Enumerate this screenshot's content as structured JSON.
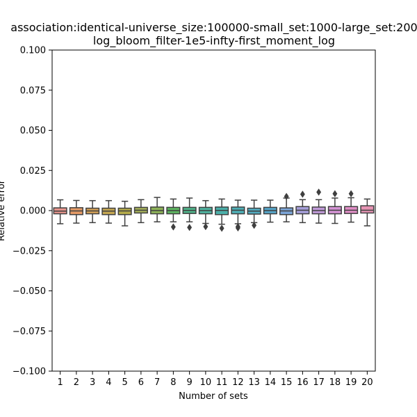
{
  "chart_data": {
    "type": "box",
    "title_line1": "association:identical-universe_size:100000-small_set:1000-large_set:200",
    "title_line2": "log_bloom_filter-1e5-infty-first_moment_log",
    "xlabel": "Number of sets",
    "ylabel": "Relative error",
    "ylim": [
      -0.1,
      0.1
    ],
    "yticks": [
      "−0.100",
      "−0.075",
      "−0.050",
      "−0.025",
      "0.000",
      "0.025",
      "0.050",
      "0.075",
      "0.100"
    ],
    "ytick_values": [
      -0.1,
      -0.075,
      -0.05,
      -0.025,
      0.0,
      0.025,
      0.05,
      0.075,
      0.1
    ],
    "categories": [
      "1",
      "2",
      "3",
      "4",
      "5",
      "6",
      "7",
      "8",
      "9",
      "10",
      "11",
      "12",
      "13",
      "14",
      "15",
      "16",
      "17",
      "18",
      "19",
      "20"
    ],
    "grid": false,
    "boxes": [
      {
        "q1": -0.002,
        "median": -0.0003,
        "q3": 0.0017,
        "whislo": -0.0082,
        "whishi": 0.0067,
        "fliers": [],
        "color": "#e6938b"
      },
      {
        "q1": -0.0025,
        "median": -0.0002,
        "q3": 0.0018,
        "whislo": -0.0078,
        "whishi": 0.0063,
        "fliers": [],
        "color": "#e39a66"
      },
      {
        "q1": -0.002,
        "median": -0.0002,
        "q3": 0.0015,
        "whislo": -0.0075,
        "whishi": 0.0062,
        "fliers": [],
        "color": "#d4a057"
      },
      {
        "q1": -0.0025,
        "median": -0.0003,
        "q3": 0.0015,
        "whislo": -0.0078,
        "whishi": 0.0062,
        "fliers": [],
        "color": "#c4a651"
      },
      {
        "q1": -0.0025,
        "median": -0.0002,
        "q3": 0.0015,
        "whislo": -0.0095,
        "whishi": 0.0058,
        "fliers": [],
        "color": "#b5ac4b"
      },
      {
        "q1": -0.0015,
        "median": 0.0002,
        "q3": 0.002,
        "whislo": -0.0075,
        "whishi": 0.0068,
        "fliers": [],
        "color": "#a5b05a"
      },
      {
        "q1": -0.002,
        "median": 0.0,
        "q3": 0.0022,
        "whislo": -0.007,
        "whishi": 0.0082,
        "fliers": [],
        "color": "#8db258"
      },
      {
        "q1": -0.002,
        "median": 0.0,
        "q3": 0.002,
        "whislo": -0.007,
        "whishi": 0.0072,
        "fliers": [
          -0.0102
        ],
        "color": "#5db560"
      },
      {
        "q1": -0.0018,
        "median": 0.0001,
        "q3": 0.002,
        "whislo": -0.007,
        "whishi": 0.0078,
        "fliers": [
          -0.0105
        ],
        "color": "#4fb48a"
      },
      {
        "q1": -0.002,
        "median": 0.0,
        "q3": 0.002,
        "whislo": -0.008,
        "whishi": 0.0062,
        "fliers": [
          -0.01
        ],
        "color": "#4fb29f"
      },
      {
        "q1": -0.0025,
        "median": 0.0001,
        "q3": 0.0022,
        "whislo": -0.0085,
        "whishi": 0.0072,
        "fliers": [
          -0.011
        ],
        "color": "#4bb0aa"
      },
      {
        "q1": -0.002,
        "median": 0.0002,
        "q3": 0.0022,
        "whislo": -0.0082,
        "whishi": 0.0065,
        "fliers": [
          -0.01,
          -0.0108
        ],
        "color": "#4eaeb5"
      },
      {
        "q1": -0.0022,
        "median": -0.0003,
        "q3": 0.0015,
        "whislo": -0.0075,
        "whishi": 0.0065,
        "fliers": [
          -0.0092
        ],
        "color": "#52abbf"
      },
      {
        "q1": -0.002,
        "median": 0.0,
        "q3": 0.002,
        "whislo": -0.0072,
        "whishi": 0.0065,
        "fliers": [],
        "color": "#56a5c9"
      },
      {
        "q1": -0.0025,
        "median": -0.0002,
        "q3": 0.0017,
        "whislo": -0.007,
        "whishi": 0.0078,
        "fliers": [
          0.0088
        ],
        "color": "#7ba4d6"
      },
      {
        "q1": -0.002,
        "median": 0.0002,
        "q3": 0.0025,
        "whislo": -0.0075,
        "whishi": 0.0068,
        "fliers": [
          0.0102
        ],
        "color": "#a69fd9"
      },
      {
        "q1": -0.002,
        "median": 0.0,
        "q3": 0.0022,
        "whislo": -0.0078,
        "whishi": 0.0068,
        "fliers": [
          0.0115
        ],
        "color": "#c09ad8"
      },
      {
        "q1": -0.002,
        "median": 0.0002,
        "q3": 0.0025,
        "whislo": -0.008,
        "whishi": 0.0078,
        "fliers": [
          0.0105
        ],
        "color": "#d493d4"
      },
      {
        "q1": -0.0018,
        "median": 0.0002,
        "q3": 0.0025,
        "whislo": -0.0072,
        "whishi": 0.008,
        "fliers": [
          0.0105
        ],
        "color": "#e18fc7"
      },
      {
        "q1": -0.0015,
        "median": 0.0002,
        "q3": 0.003,
        "whislo": -0.0095,
        "whishi": 0.0072,
        "fliers": [],
        "color": "#e693b3"
      }
    ]
  }
}
